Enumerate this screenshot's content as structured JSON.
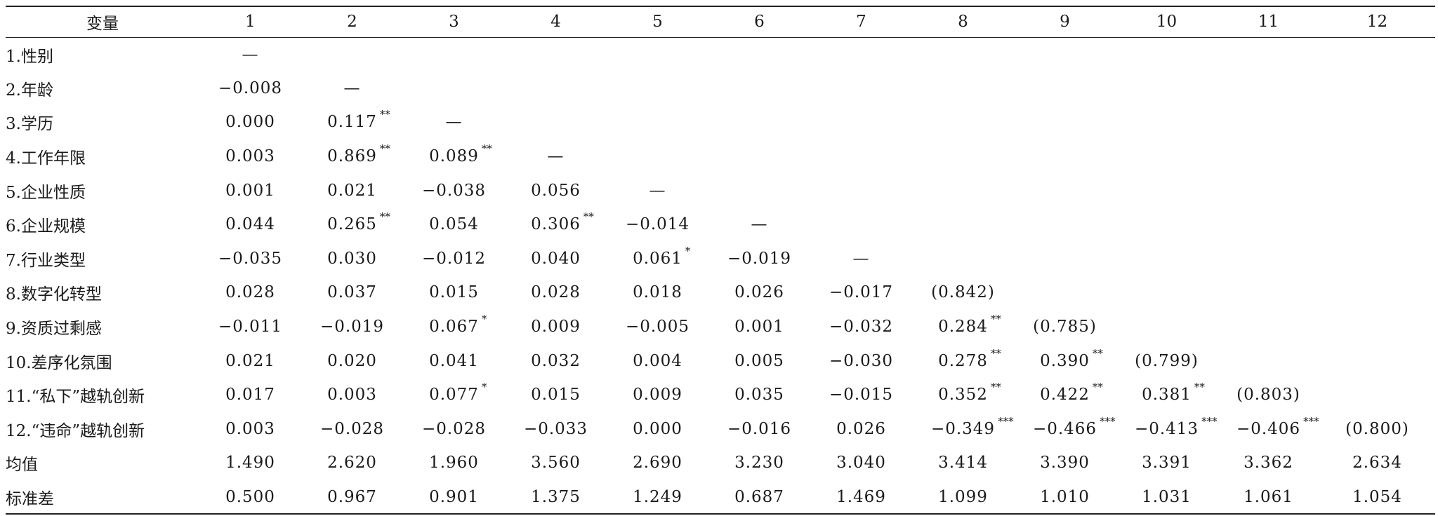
{
  "table": {
    "header_label": "变量",
    "columns": [
      "1",
      "2",
      "3",
      "4",
      "5",
      "6",
      "7",
      "8",
      "9",
      "10",
      "11",
      "12"
    ],
    "rows": [
      {
        "label": "1.性别",
        "values": [
          {
            "v": "—",
            "s": ""
          },
          {
            "v": "",
            "s": ""
          },
          {
            "v": "",
            "s": ""
          },
          {
            "v": "",
            "s": ""
          },
          {
            "v": "",
            "s": ""
          },
          {
            "v": "",
            "s": ""
          },
          {
            "v": "",
            "s": ""
          },
          {
            "v": "",
            "s": ""
          },
          {
            "v": "",
            "s": ""
          },
          {
            "v": "",
            "s": ""
          },
          {
            "v": "",
            "s": ""
          },
          {
            "v": "",
            "s": ""
          }
        ]
      },
      {
        "label": "2.年龄",
        "values": [
          {
            "v": "−0.008",
            "s": ""
          },
          {
            "v": "—",
            "s": ""
          },
          {
            "v": "",
            "s": ""
          },
          {
            "v": "",
            "s": ""
          },
          {
            "v": "",
            "s": ""
          },
          {
            "v": "",
            "s": ""
          },
          {
            "v": "",
            "s": ""
          },
          {
            "v": "",
            "s": ""
          },
          {
            "v": "",
            "s": ""
          },
          {
            "v": "",
            "s": ""
          },
          {
            "v": "",
            "s": ""
          },
          {
            "v": "",
            "s": ""
          }
        ]
      },
      {
        "label": "3.学历",
        "values": [
          {
            "v": "0.000",
            "s": ""
          },
          {
            "v": "0.117",
            "s": "**"
          },
          {
            "v": "—",
            "s": ""
          },
          {
            "v": "",
            "s": ""
          },
          {
            "v": "",
            "s": ""
          },
          {
            "v": "",
            "s": ""
          },
          {
            "v": "",
            "s": ""
          },
          {
            "v": "",
            "s": ""
          },
          {
            "v": "",
            "s": ""
          },
          {
            "v": "",
            "s": ""
          },
          {
            "v": "",
            "s": ""
          },
          {
            "v": "",
            "s": ""
          }
        ]
      },
      {
        "label": "4.工作年限",
        "values": [
          {
            "v": "0.003",
            "s": ""
          },
          {
            "v": "0.869",
            "s": "**"
          },
          {
            "v": "0.089",
            "s": "**"
          },
          {
            "v": "—",
            "s": ""
          },
          {
            "v": "",
            "s": ""
          },
          {
            "v": "",
            "s": ""
          },
          {
            "v": "",
            "s": ""
          },
          {
            "v": "",
            "s": ""
          },
          {
            "v": "",
            "s": ""
          },
          {
            "v": "",
            "s": ""
          },
          {
            "v": "",
            "s": ""
          },
          {
            "v": "",
            "s": ""
          }
        ]
      },
      {
        "label": "5.企业性质",
        "values": [
          {
            "v": "0.001",
            "s": ""
          },
          {
            "v": "0.021",
            "s": ""
          },
          {
            "v": "−0.038",
            "s": ""
          },
          {
            "v": "0.056",
            "s": ""
          },
          {
            "v": "—",
            "s": ""
          },
          {
            "v": "",
            "s": ""
          },
          {
            "v": "",
            "s": ""
          },
          {
            "v": "",
            "s": ""
          },
          {
            "v": "",
            "s": ""
          },
          {
            "v": "",
            "s": ""
          },
          {
            "v": "",
            "s": ""
          },
          {
            "v": "",
            "s": ""
          }
        ]
      },
      {
        "label": "6.企业规模",
        "values": [
          {
            "v": "0.044",
            "s": ""
          },
          {
            "v": "0.265",
            "s": "**"
          },
          {
            "v": "0.054",
            "s": ""
          },
          {
            "v": "0.306",
            "s": "**"
          },
          {
            "v": "−0.014",
            "s": ""
          },
          {
            "v": "—",
            "s": ""
          },
          {
            "v": "",
            "s": ""
          },
          {
            "v": "",
            "s": ""
          },
          {
            "v": "",
            "s": ""
          },
          {
            "v": "",
            "s": ""
          },
          {
            "v": "",
            "s": ""
          },
          {
            "v": "",
            "s": ""
          }
        ]
      },
      {
        "label": "7.行业类型",
        "values": [
          {
            "v": "−0.035",
            "s": ""
          },
          {
            "v": "0.030",
            "s": ""
          },
          {
            "v": "−0.012",
            "s": ""
          },
          {
            "v": "0.040",
            "s": ""
          },
          {
            "v": "0.061",
            "s": "*"
          },
          {
            "v": "−0.019",
            "s": ""
          },
          {
            "v": "—",
            "s": ""
          },
          {
            "v": "",
            "s": ""
          },
          {
            "v": "",
            "s": ""
          },
          {
            "v": "",
            "s": ""
          },
          {
            "v": "",
            "s": ""
          },
          {
            "v": "",
            "s": ""
          }
        ]
      },
      {
        "label": "8.数字化转型",
        "values": [
          {
            "v": "0.028",
            "s": ""
          },
          {
            "v": "0.037",
            "s": ""
          },
          {
            "v": "0.015",
            "s": ""
          },
          {
            "v": "0.028",
            "s": ""
          },
          {
            "v": "0.018",
            "s": ""
          },
          {
            "v": "0.026",
            "s": ""
          },
          {
            "v": "−0.017",
            "s": ""
          },
          {
            "v": "(0.842)",
            "s": ""
          },
          {
            "v": "",
            "s": ""
          },
          {
            "v": "",
            "s": ""
          },
          {
            "v": "",
            "s": ""
          },
          {
            "v": "",
            "s": ""
          }
        ]
      },
      {
        "label": "9.资质过剩感",
        "values": [
          {
            "v": "−0.011",
            "s": ""
          },
          {
            "v": "−0.019",
            "s": ""
          },
          {
            "v": "0.067",
            "s": "*"
          },
          {
            "v": "0.009",
            "s": ""
          },
          {
            "v": "−0.005",
            "s": ""
          },
          {
            "v": "0.001",
            "s": ""
          },
          {
            "v": "−0.032",
            "s": ""
          },
          {
            "v": "0.284",
            "s": "**"
          },
          {
            "v": "(0.785)",
            "s": ""
          },
          {
            "v": "",
            "s": ""
          },
          {
            "v": "",
            "s": ""
          },
          {
            "v": "",
            "s": ""
          }
        ]
      },
      {
        "label": "10.差序化氛围",
        "values": [
          {
            "v": "0.021",
            "s": ""
          },
          {
            "v": "0.020",
            "s": ""
          },
          {
            "v": "0.041",
            "s": ""
          },
          {
            "v": "0.032",
            "s": ""
          },
          {
            "v": "0.004",
            "s": ""
          },
          {
            "v": "0.005",
            "s": ""
          },
          {
            "v": "−0.030",
            "s": ""
          },
          {
            "v": "0.278",
            "s": "**"
          },
          {
            "v": "0.390",
            "s": "**"
          },
          {
            "v": "(0.799)",
            "s": ""
          },
          {
            "v": "",
            "s": ""
          },
          {
            "v": "",
            "s": ""
          }
        ]
      },
      {
        "label": "11.“私下”越轨创新",
        "values": [
          {
            "v": "0.017",
            "s": ""
          },
          {
            "v": "0.003",
            "s": ""
          },
          {
            "v": "0.077",
            "s": "*"
          },
          {
            "v": "0.015",
            "s": ""
          },
          {
            "v": "0.009",
            "s": ""
          },
          {
            "v": "0.035",
            "s": ""
          },
          {
            "v": "−0.015",
            "s": ""
          },
          {
            "v": "0.352",
            "s": "**"
          },
          {
            "v": "0.422",
            "s": "**"
          },
          {
            "v": "0.381",
            "s": "**"
          },
          {
            "v": "(0.803)",
            "s": ""
          },
          {
            "v": "",
            "s": ""
          }
        ]
      },
      {
        "label": "12.“违命”越轨创新",
        "values": [
          {
            "v": "0.003",
            "s": ""
          },
          {
            "v": "−0.028",
            "s": ""
          },
          {
            "v": "−0.028",
            "s": ""
          },
          {
            "v": "−0.033",
            "s": ""
          },
          {
            "v": "0.000",
            "s": ""
          },
          {
            "v": "−0.016",
            "s": ""
          },
          {
            "v": "0.026",
            "s": ""
          },
          {
            "v": "−0.349",
            "s": "***"
          },
          {
            "v": "−0.466",
            "s": "***"
          },
          {
            "v": "−0.413",
            "s": "***"
          },
          {
            "v": "−0.406",
            "s": "***"
          },
          {
            "v": "(0.800)",
            "s": ""
          }
        ]
      },
      {
        "label": "均值",
        "values": [
          {
            "v": "1.490",
            "s": ""
          },
          {
            "v": "2.620",
            "s": ""
          },
          {
            "v": "1.960",
            "s": ""
          },
          {
            "v": "3.560",
            "s": ""
          },
          {
            "v": "2.690",
            "s": ""
          },
          {
            "v": "3.230",
            "s": ""
          },
          {
            "v": "3.040",
            "s": ""
          },
          {
            "v": "3.414",
            "s": ""
          },
          {
            "v": "3.390",
            "s": ""
          },
          {
            "v": "3.391",
            "s": ""
          },
          {
            "v": "3.362",
            "s": ""
          },
          {
            "v": "2.634",
            "s": ""
          }
        ]
      },
      {
        "label": "标准差",
        "values": [
          {
            "v": "0.500",
            "s": ""
          },
          {
            "v": "0.967",
            "s": ""
          },
          {
            "v": "0.901",
            "s": ""
          },
          {
            "v": "1.375",
            "s": ""
          },
          {
            "v": "1.249",
            "s": ""
          },
          {
            "v": "0.687",
            "s": ""
          },
          {
            "v": "1.469",
            "s": ""
          },
          {
            "v": "1.099",
            "s": ""
          },
          {
            "v": "1.010",
            "s": ""
          },
          {
            "v": "1.031",
            "s": ""
          },
          {
            "v": "1.061",
            "s": ""
          },
          {
            "v": "1.054",
            "s": ""
          }
        ]
      }
    ]
  }
}
